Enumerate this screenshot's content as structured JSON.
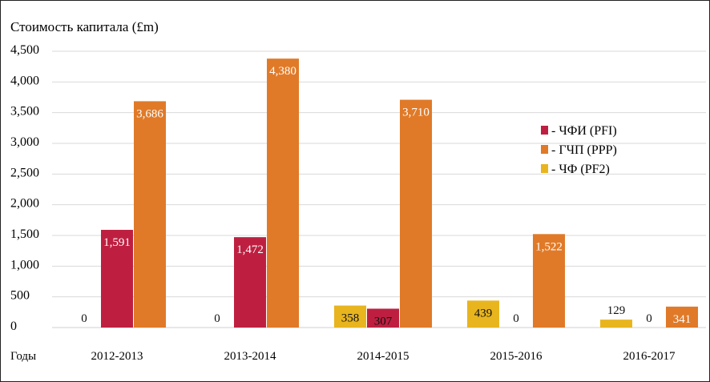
{
  "chart_data": {
    "type": "bar",
    "title": "Стоимость капитала (£m)",
    "xlabel": "Годы",
    "ylabel": "Стоимость капитала (£m)",
    "ylim": [
      0,
      4500
    ],
    "yticks": [
      0,
      500,
      1000,
      1500,
      2000,
      2500,
      3000,
      3500,
      4000,
      4500
    ],
    "ytick_labels": [
      "0",
      "500",
      "1,000",
      "1,500",
      "2,000",
      "2,500",
      "3,000",
      "3,500",
      "4,000",
      "4,500"
    ],
    "grid": true,
    "legend_position": "right",
    "categories": [
      "2012-2013",
      "2013-2014",
      "2014-2015",
      "2015-2016",
      "2016-2017"
    ],
    "series": [
      {
        "name": "- ЧФ (PF2)",
        "color": "#e8b51e",
        "values": [
          0,
          0,
          358,
          439,
          129
        ],
        "labels": [
          "0",
          "0",
          "358",
          "439",
          "129"
        ]
      },
      {
        "name": "- ЧФИ (PFI)",
        "color": "#be1f40",
        "values": [
          1591,
          1472,
          307,
          0,
          0
        ],
        "labels": [
          "1,591",
          "1,472",
          "307",
          "0",
          "0"
        ]
      },
      {
        "name": "- ГЧП (PPP)",
        "color": "#e07a28",
        "values": [
          3686,
          4380,
          3710,
          1522,
          341
        ],
        "labels": [
          "3,686",
          "4,380",
          "3,710",
          "1,522",
          "341"
        ]
      }
    ],
    "legend_order": [
      1,
      2,
      0
    ]
  }
}
